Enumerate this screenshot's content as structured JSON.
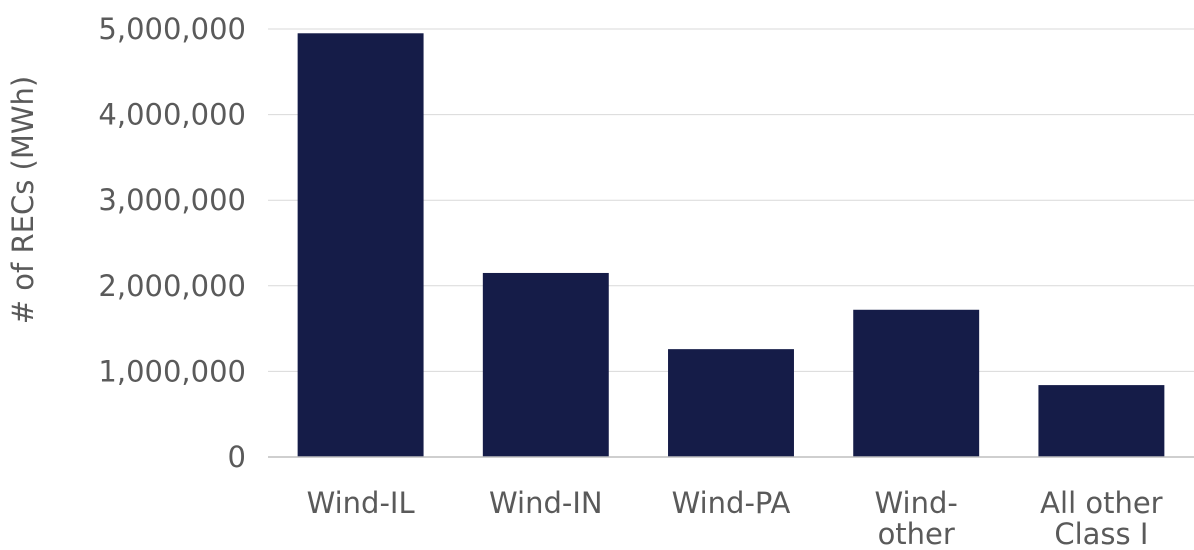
{
  "chart_data": {
    "type": "bar",
    "title": "",
    "xlabel": "",
    "ylabel": "# of RECs (MWh)",
    "categories": [
      [
        "Wind-IL"
      ],
      [
        "Wind-IN"
      ],
      [
        "Wind-PA"
      ],
      [
        "Wind-",
        "other"
      ],
      [
        "All other",
        "Class I"
      ]
    ],
    "values": [
      4950000,
      2150000,
      1260000,
      1720000,
      840000
    ],
    "ylim": [
      0,
      5000000
    ],
    "yticks": [
      0,
      1000000,
      2000000,
      3000000,
      4000000,
      5000000
    ],
    "ytick_labels": [
      "0",
      "1,000,000",
      "2,000,000",
      "3,000,000",
      "4,000,000",
      "5,000,000"
    ],
    "grid": true,
    "legend": "none",
    "bar_color": "#151c48",
    "grid_color": "#d9d9d9",
    "axis_color": "#bfbfbf"
  }
}
